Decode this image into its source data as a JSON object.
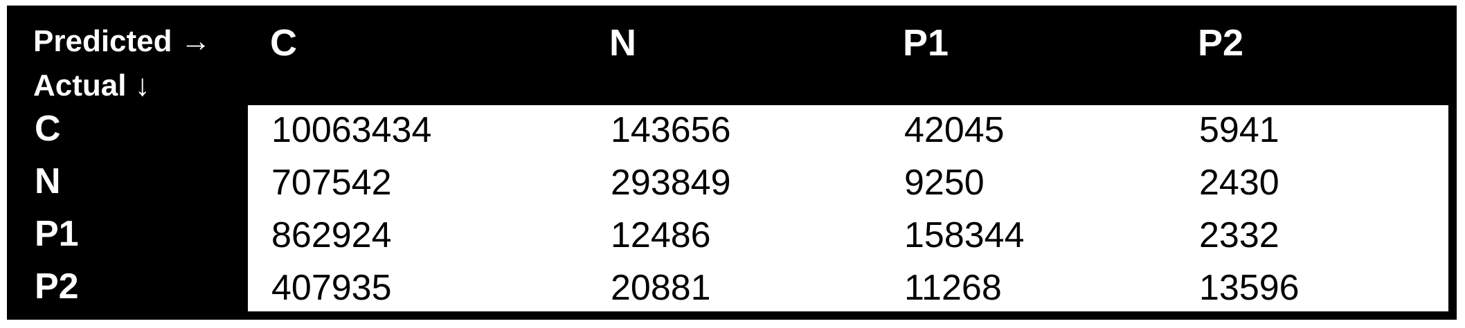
{
  "header": {
    "predicted_label": "Predicted →",
    "actual_label": "Actual ↓",
    "columns": [
      "C",
      "N",
      "P1",
      "P2"
    ]
  },
  "rows": [
    {
      "label": "C",
      "values": [
        "10063434",
        "143656",
        "42045",
        "5941"
      ]
    },
    {
      "label": "N",
      "values": [
        "707542",
        "293849",
        "9250",
        "2430"
      ]
    },
    {
      "label": "P1",
      "values": [
        "862924",
        "12486",
        "158344",
        "2332"
      ]
    },
    {
      "label": "P2",
      "values": [
        "407935",
        "20881",
        "11268",
        "13596"
      ]
    }
  ],
  "colors": {
    "header_background": "#000000",
    "header_text": "#ffffff",
    "body_background": "#ffffff",
    "body_text": "#000000"
  }
}
